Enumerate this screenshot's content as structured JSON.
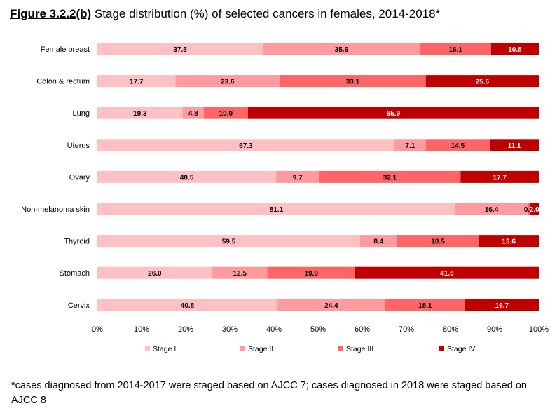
{
  "title": {
    "figure_label": "Figure 3.2.2(b)",
    "text": "Stage distribution (%) of selected cancers in females, 2014-2018*"
  },
  "footnote": "*cases diagnosed from 2014-2017 were staged based on AJCC 7; cases diagnosed in 2018 were staged based on AJCC 8",
  "chart_data": {
    "type": "bar",
    "orientation": "horizontal",
    "stacked": true,
    "normalized_percent": true,
    "categories": [
      "Female breast",
      "Colon & rectum",
      "Lung",
      "Uterus",
      "Ovary",
      "Non-melanoma skin",
      "Thyroid",
      "Stomach",
      "Cervix"
    ],
    "series": [
      {
        "name": "Stage I",
        "color": "#ffc0c4",
        "values": [
          37.5,
          17.7,
          19.3,
          67.3,
          40.5,
          81.1,
          59.5,
          26.0,
          40.8
        ]
      },
      {
        "name": "Stage II",
        "color": "#ff9a9e",
        "values": [
          35.6,
          23.6,
          4.8,
          7.1,
          9.7,
          16.4,
          8.4,
          12.5,
          24.4
        ]
      },
      {
        "name": "Stage III",
        "color": "#ff6466",
        "values": [
          16.1,
          33.1,
          10.0,
          14.5,
          32.1,
          0.5,
          18.5,
          19.9,
          18.1
        ]
      },
      {
        "name": "Stage IV",
        "color": "#c00000",
        "values": [
          10.8,
          25.6,
          65.9,
          11.1,
          17.7,
          2.0,
          13.6,
          41.6,
          16.7
        ]
      }
    ],
    "xlim": [
      0,
      100
    ],
    "x_ticks": [
      "0%",
      "10%",
      "20%",
      "30%",
      "40%",
      "50%",
      "60%",
      "70%",
      "80%",
      "90%",
      "100%"
    ],
    "grid": false,
    "legend_position": "bottom",
    "data_labels": true
  }
}
